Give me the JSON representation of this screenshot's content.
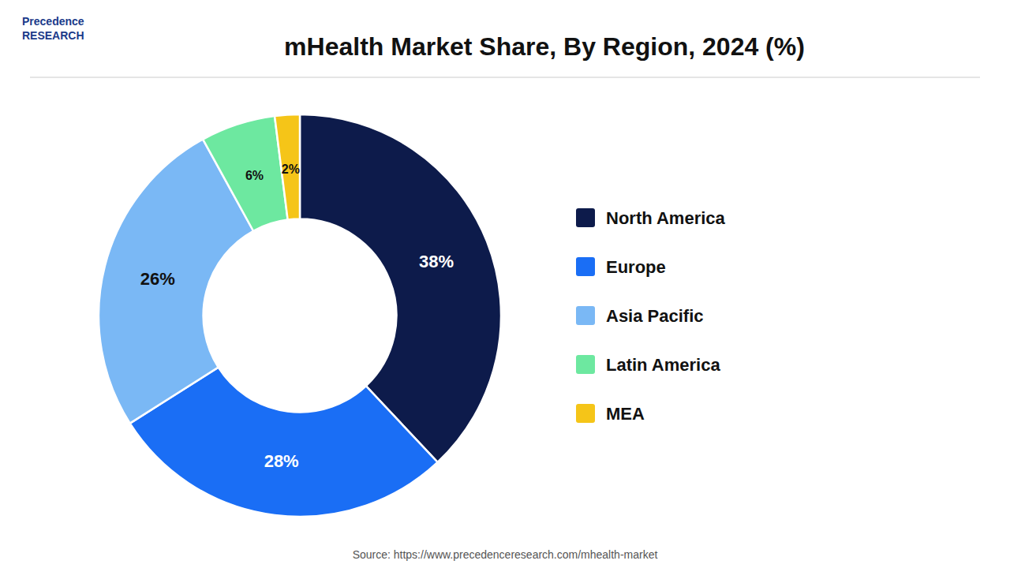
{
  "chart_data": {
    "type": "pie",
    "title": "mHealth Market Share, By Region, 2024 (%)",
    "categories": [
      "North America",
      "Europe",
      "Asia Pacific",
      "Latin America",
      "MEA"
    ],
    "values": [
      38,
      28,
      26,
      6,
      2
    ],
    "value_labels": [
      "38%",
      "28%",
      "26%",
      "6%",
      "2%"
    ],
    "colors": [
      "#0d1b4b",
      "#1a6ef5",
      "#7ab8f5",
      "#6de8a0",
      "#f5c518"
    ],
    "data_labels": true,
    "legend": "right",
    "annotations": [
      "Precedence",
      "RESEARCH",
      "Source: https://www.precedenceresearch.com/mhealth-market"
    ]
  }
}
